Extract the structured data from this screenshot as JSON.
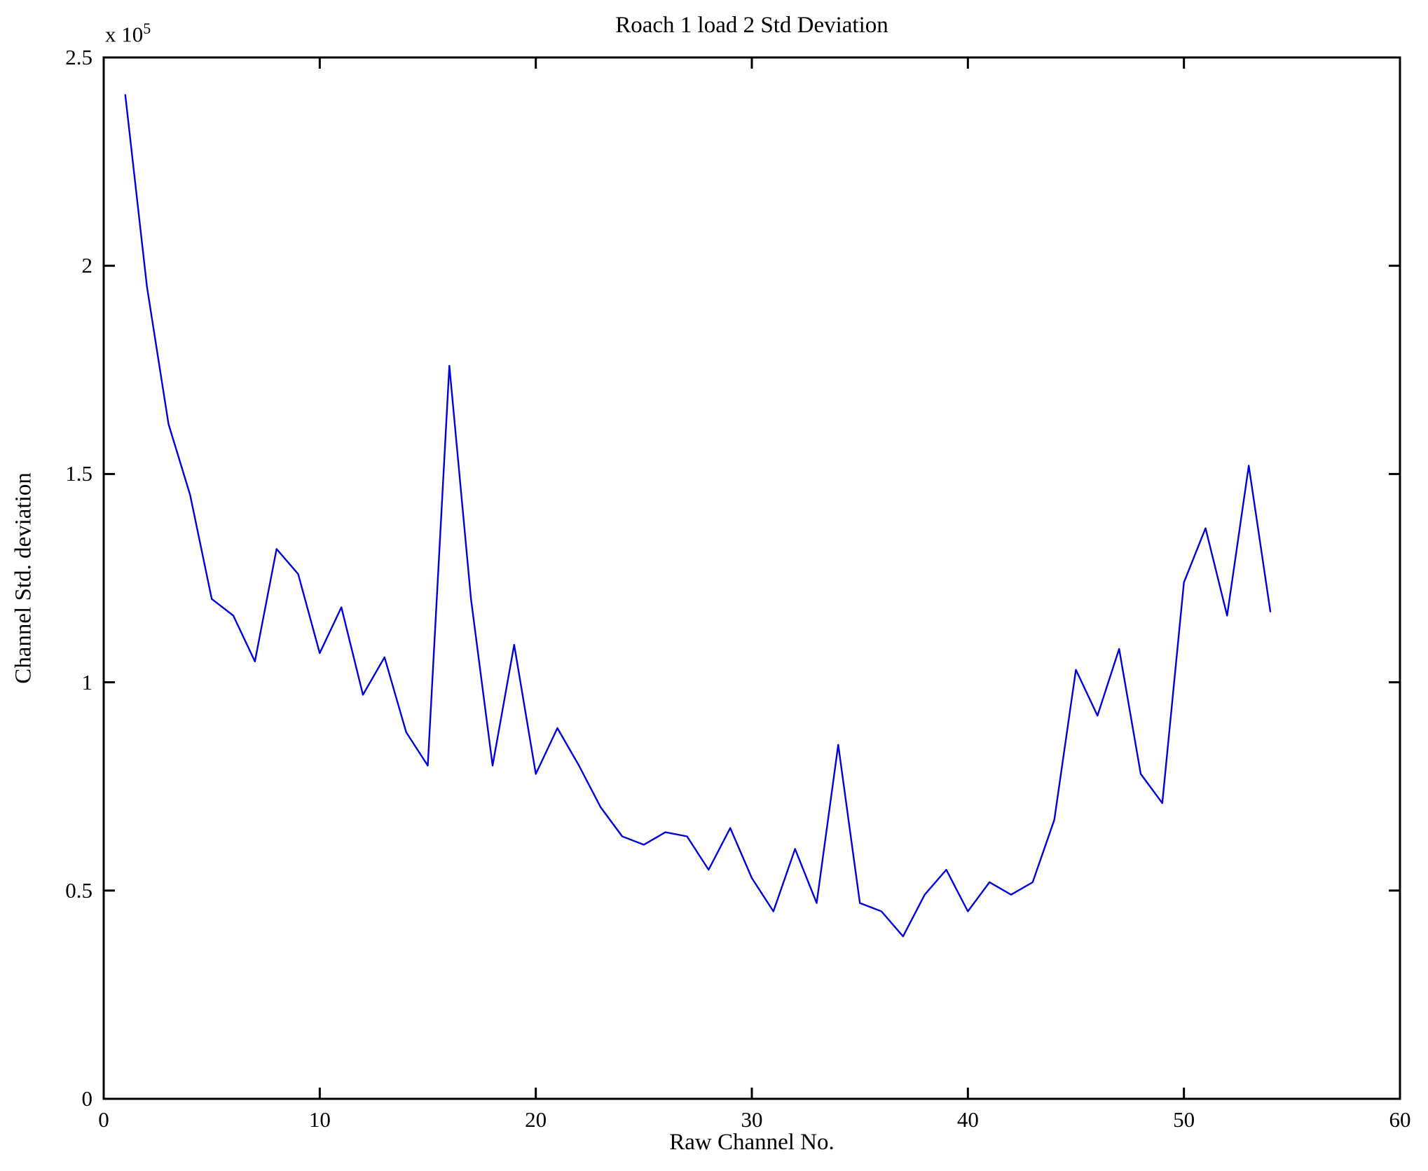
{
  "chart_data": {
    "type": "line",
    "title": "Roach 1 load 2 Std Deviation",
    "xlabel": "Raw Channel No.",
    "ylabel": "Channel Std. deviation",
    "exponent_base": "x 10",
    "exponent_power": "5",
    "xlim": [
      0,
      60
    ],
    "ylim": [
      0,
      250000
    ],
    "xticks": [
      0,
      10,
      20,
      30,
      40,
      50,
      60
    ],
    "xtick_labels": [
      "0",
      "10",
      "20",
      "30",
      "40",
      "50",
      "60"
    ],
    "yticks": [
      0,
      50000,
      100000,
      150000,
      200000,
      250000
    ],
    "ytick_labels": [
      "0",
      "0.5",
      "1",
      "1.5",
      "2",
      "2.5"
    ],
    "grid": false,
    "legend": "none",
    "box": true,
    "line_color": "#0000dd",
    "axis_color": "#000000",
    "x": [
      1,
      2,
      3,
      4,
      5,
      6,
      7,
      8,
      9,
      10,
      11,
      12,
      13,
      14,
      15,
      16,
      17,
      18,
      19,
      20,
      21,
      22,
      23,
      24,
      25,
      26,
      27,
      28,
      29,
      30,
      31,
      32,
      33,
      34,
      35,
      36,
      37,
      38,
      39,
      40,
      41,
      42,
      43,
      44,
      45,
      46,
      47,
      48,
      49,
      50,
      51,
      52,
      53,
      54
    ],
    "y": [
      241000,
      195000,
      162000,
      145000,
      120000,
      116000,
      105000,
      132000,
      126000,
      107000,
      118000,
      97000,
      106000,
      88000,
      80000,
      176000,
      120000,
      80000,
      109000,
      78000,
      89000,
      80000,
      70000,
      63000,
      61000,
      64000,
      63000,
      55000,
      65000,
      53000,
      45000,
      60000,
      47000,
      85000,
      47000,
      45000,
      39000,
      49000,
      55000,
      45000,
      52000,
      49000,
      52000,
      67000,
      103000,
      92000,
      108000,
      78000,
      71000,
      124000,
      137000,
      116000,
      152000,
      117000
    ]
  }
}
